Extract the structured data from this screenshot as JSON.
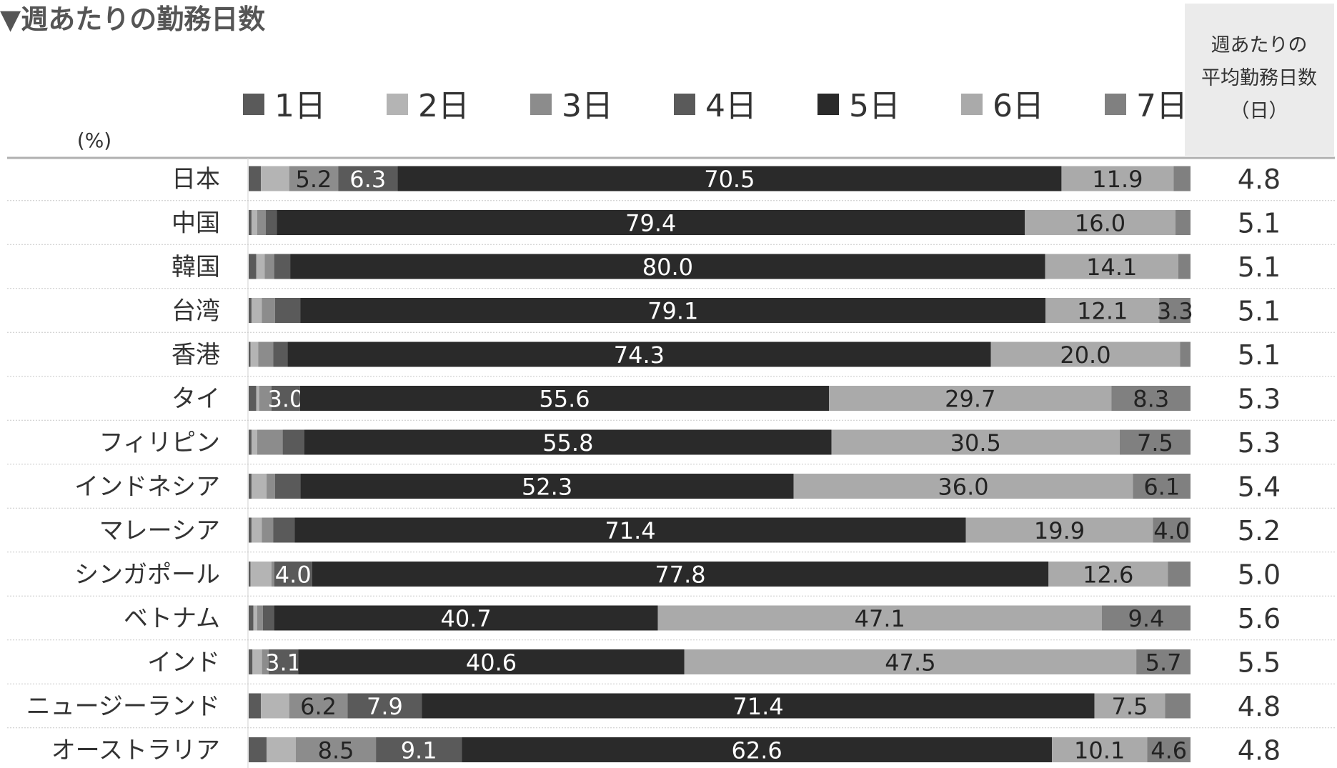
{
  "chart_data": {
    "type": "bar",
    "orientation": "horizontal",
    "stacked": true,
    "title": "▼週あたりの勤務日数",
    "unit_label": "(%)",
    "average_column_header": [
      "週あたりの",
      "平均勤務日数",
      "（日）"
    ],
    "legend_position": "top",
    "colors": {
      "1日": "#5a5a5a",
      "2日": "#b4b4b4",
      "3日": "#8c8c8c",
      "4日": "#5a5a5a",
      "5日": "#2a2a2a",
      "6日": "#aaaaaa",
      "7日": "#808080"
    },
    "categories": [
      "日本",
      "中国",
      "韓国",
      "台湾",
      "香港",
      "タイ",
      "フィリピン",
      "インドネシア",
      "マレーシア",
      "シンガポール",
      "ベトナム",
      "インド",
      "ニュージーランド",
      "オーストラリア"
    ],
    "series": [
      {
        "name": "1日",
        "values": [
          1.3,
          0.3,
          0.8,
          0.3,
          0.2,
          0.8,
          0.3,
          0.3,
          0.3,
          0.2,
          0.5,
          0.4,
          1.3,
          1.9
        ]
      },
      {
        "name": "2日",
        "values": [
          3.0,
          0.6,
          0.9,
          1.1,
          0.8,
          0.3,
          0.6,
          1.6,
          1.1,
          2.2,
          0.4,
          1.0,
          3.0,
          3.1
        ]
      },
      {
        "name": "3日",
        "values": [
          5.2,
          0.9,
          1.0,
          1.4,
          1.6,
          1.3,
          2.7,
          0.9,
          1.2,
          0.3,
          0.6,
          0.7,
          6.2,
          8.5
        ]
      },
      {
        "name": "4日",
        "values": [
          6.3,
          1.2,
          1.7,
          2.7,
          1.5,
          3.0,
          2.3,
          2.7,
          2.3,
          4.0,
          1.2,
          3.1,
          7.9,
          9.1
        ]
      },
      {
        "name": "5日",
        "values": [
          70.5,
          79.4,
          80.0,
          79.1,
          74.3,
          55.6,
          55.8,
          52.3,
          71.4,
          77.8,
          40.7,
          40.6,
          71.4,
          62.6
        ]
      },
      {
        "name": "6日",
        "values": [
          11.9,
          16.0,
          14.1,
          12.1,
          20.0,
          29.7,
          30.5,
          36.0,
          19.9,
          12.6,
          47.1,
          47.5,
          7.5,
          10.1
        ]
      },
      {
        "name": "7日",
        "values": [
          1.8,
          1.6,
          1.3,
          3.3,
          1.1,
          8.3,
          7.5,
          6.1,
          4.0,
          2.4,
          9.4,
          5.7,
          2.7,
          4.6
        ]
      }
    ],
    "data_labels": [
      [
        null,
        null,
        "5.2",
        "6.3",
        "70.5",
        "11.9",
        null
      ],
      [
        null,
        null,
        null,
        null,
        "79.4",
        "16.0",
        null
      ],
      [
        null,
        null,
        null,
        null,
        "80.0",
        "14.1",
        null
      ],
      [
        null,
        null,
        null,
        null,
        "79.1",
        "12.1",
        "3.3"
      ],
      [
        null,
        null,
        null,
        null,
        "74.3",
        "20.0",
        null
      ],
      [
        null,
        null,
        null,
        "3.0",
        "55.6",
        "29.7",
        "8.3"
      ],
      [
        null,
        null,
        null,
        null,
        "55.8",
        "30.5",
        "7.5"
      ],
      [
        null,
        null,
        null,
        null,
        "52.3",
        "36.0",
        "6.1"
      ],
      [
        null,
        null,
        null,
        null,
        "71.4",
        "19.9",
        "4.0"
      ],
      [
        null,
        null,
        null,
        "4.0",
        "77.8",
        "12.6",
        null
      ],
      [
        null,
        null,
        null,
        null,
        "40.7",
        "47.1",
        "9.4"
      ],
      [
        null,
        null,
        null,
        "3.1",
        "40.6",
        "47.5",
        "5.7"
      ],
      [
        null,
        null,
        "6.2",
        "7.9",
        "71.4",
        "7.5",
        null
      ],
      [
        null,
        null,
        "8.5",
        "9.1",
        "62.6",
        "10.1",
        "4.6"
      ]
    ],
    "averages": [
      "4.8",
      "5.1",
      "5.1",
      "5.1",
      "5.1",
      "5.3",
      "5.3",
      "5.4",
      "5.2",
      "5.0",
      "5.6",
      "5.5",
      "4.8",
      "4.8"
    ]
  }
}
